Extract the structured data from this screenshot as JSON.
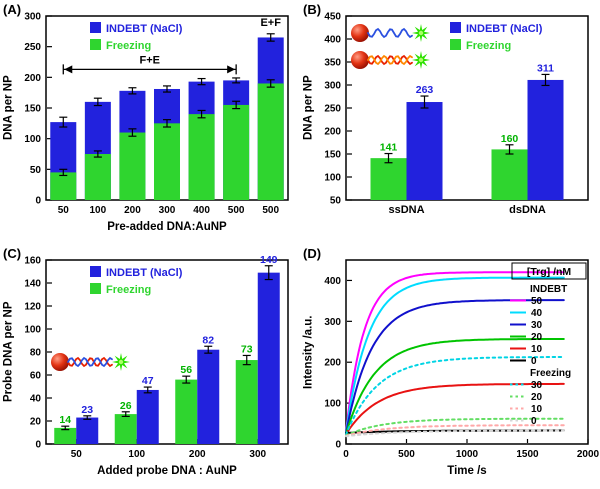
{
  "colors": {
    "indebt_blue": "#2222dd",
    "freezing_green": "#2fd52f",
    "value_green": "#00b300",
    "nanoparticle_red": "#cc1100",
    "star_green": "#2ce000"
  },
  "chart_data": [
    {
      "panel_tag": "(A)",
      "type": "stacked-bar",
      "ylabel": "DNA per NP",
      "xlabel": "Pre-added DNA:AuNP",
      "ylim": [
        0,
        300
      ],
      "yticks": [
        0,
        50,
        100,
        150,
        200,
        250,
        300
      ],
      "categories": [
        "50",
        "100",
        "200",
        "300",
        "400",
        "500",
        "500"
      ],
      "legend": [
        {
          "label": "INDEBT (NaCl)",
          "color": "#2222dd"
        },
        {
          "label": "Freezing",
          "color": "#2fd52f"
        }
      ],
      "series": [
        {
          "name": "Freezing",
          "color": "#2fd52f",
          "values": [
            45,
            75,
            110,
            125,
            140,
            155,
            190
          ],
          "errors": [
            5,
            5,
            6,
            6,
            6,
            6,
            6
          ]
        },
        {
          "name": "INDEBT (NaCl)",
          "color": "#2222dd",
          "stack_totals": [
            127,
            160,
            178,
            181,
            193,
            195,
            265
          ],
          "errors": [
            8,
            6,
            5,
            5,
            5,
            4,
            6
          ]
        }
      ],
      "annotations": {
        "span_label": "F+E",
        "span_bars": [
          0,
          5
        ],
        "span_y": 213,
        "last_label": "E+F",
        "last_y": 284
      }
    },
    {
      "panel_tag": "(B)",
      "type": "grouped-bar",
      "ylabel": "DNA per NP",
      "xlabel": "",
      "ylim": [
        50,
        450
      ],
      "yticks": [
        50,
        100,
        150,
        200,
        250,
        300,
        350,
        400,
        450
      ],
      "categories": [
        "ssDNA",
        "dsDNA"
      ],
      "legend": [
        {
          "label": "INDEBT (NaCl)",
          "color": "#2222dd"
        },
        {
          "label": "Freezing",
          "color": "#2fd52f"
        }
      ],
      "series": [
        {
          "name": "Freezing",
          "color": "#2fd52f",
          "values": [
            141,
            160
          ],
          "errors": [
            10,
            10
          ],
          "value_labels": [
            "141",
            "160"
          ],
          "label_color": "#00b300"
        },
        {
          "name": "INDEBT (NaCl)",
          "color": "#2222dd",
          "values": [
            263,
            311
          ],
          "errors": [
            13,
            12
          ],
          "value_labels": [
            "263",
            "311"
          ],
          "label_color": "#2222dd"
        }
      ]
    },
    {
      "panel_tag": "(C)",
      "type": "grouped-bar",
      "ylabel": "Probe DNA per NP",
      "xlabel": "Added probe DNA : AuNP",
      "ylim": [
        0,
        160
      ],
      "yticks": [
        0,
        20,
        40,
        60,
        80,
        100,
        120,
        140,
        160
      ],
      "categories": [
        "50",
        "100",
        "200",
        "300"
      ],
      "legend": [
        {
          "label": "INDEBT (NaCl)",
          "color": "#2222dd"
        },
        {
          "label": "Freezing",
          "color": "#2fd52f"
        }
      ],
      "series": [
        {
          "name": "Freezing",
          "color": "#2fd52f",
          "values": [
            14,
            26,
            56,
            73
          ],
          "errors": [
            1.5,
            2,
            3,
            4
          ],
          "value_labels": [
            "14",
            "26",
            "56",
            "73"
          ],
          "label_color": "#00b300"
        },
        {
          "name": "INDEBT (NaCl)",
          "color": "#2222dd",
          "values": [
            23,
            47,
            82,
            149
          ],
          "errors": [
            1.5,
            2.5,
            3,
            6
          ],
          "value_labels": [
            "23",
            "47",
            "82",
            "149"
          ],
          "label_color": "#2222dd"
        }
      ]
    },
    {
      "panel_tag": "(D)",
      "type": "line",
      "ylabel": "Intensity /a.u.",
      "xlabel": "Time /s",
      "xlim": [
        0,
        2000
      ],
      "ylim": [
        0,
        450
      ],
      "xticks": [
        0,
        500,
        1000,
        1500,
        2000
      ],
      "yticks": [
        0,
        100,
        200,
        300,
        400
      ],
      "t_end": 1800,
      "legend_title": "[Trg] /nM",
      "legend_groups": [
        {
          "name": "INDEBT",
          "dash": "solid",
          "entries": [
            {
              "label": "50",
              "color": "#ff00ff",
              "plateau": 420,
              "tau": 150,
              "start": 30
            },
            {
              "label": "40",
              "color": "#00dcff",
              "plateau": 407,
              "tau": 185,
              "start": 28
            },
            {
              "label": "30",
              "color": "#1010cc",
              "plateau": 352,
              "tau": 210,
              "start": 26
            },
            {
              "label": "20",
              "color": "#00c400",
              "plateau": 257,
              "tau": 235,
              "start": 25
            },
            {
              "label": "10",
              "color": "#e81212",
              "plateau": 147,
              "tau": 260,
              "start": 24
            },
            {
              "label": "0",
              "color": "#000000",
              "plateau": 33,
              "tau": 400,
              "start": 27
            }
          ]
        },
        {
          "name": "Freezing",
          "dash": "dotted",
          "entries": [
            {
              "label": "30",
              "color": "#00d4e4",
              "plateau": 213,
              "tau": 260,
              "start": 23
            },
            {
              "label": "20",
              "color": "#63de63",
              "plateau": 62,
              "tau": 300,
              "start": 21
            },
            {
              "label": "10",
              "color": "#ffa8a8",
              "plateau": 46,
              "tau": 320,
              "start": 20
            },
            {
              "label": "0",
              "color": "#d6d6d6",
              "plateau": 33,
              "tau": 400,
              "start": 19
            }
          ]
        }
      ]
    }
  ],
  "icons": {
    "panel_b": [
      {
        "name": "aunp-ssdna-fluorophore-icon",
        "y": 33,
        "strands": [
          "#2b50e0"
        ]
      },
      {
        "name": "aunp-dsdna-fluorophore-icon",
        "y": 60,
        "strands": [
          "#e82000",
          "#ff8800"
        ]
      }
    ],
    "panel_c": [
      {
        "name": "aunp-probe-dna-fluorophore-icon",
        "y": 118,
        "strands": [
          "#e82000",
          "#2b50e0"
        ]
      }
    ]
  }
}
